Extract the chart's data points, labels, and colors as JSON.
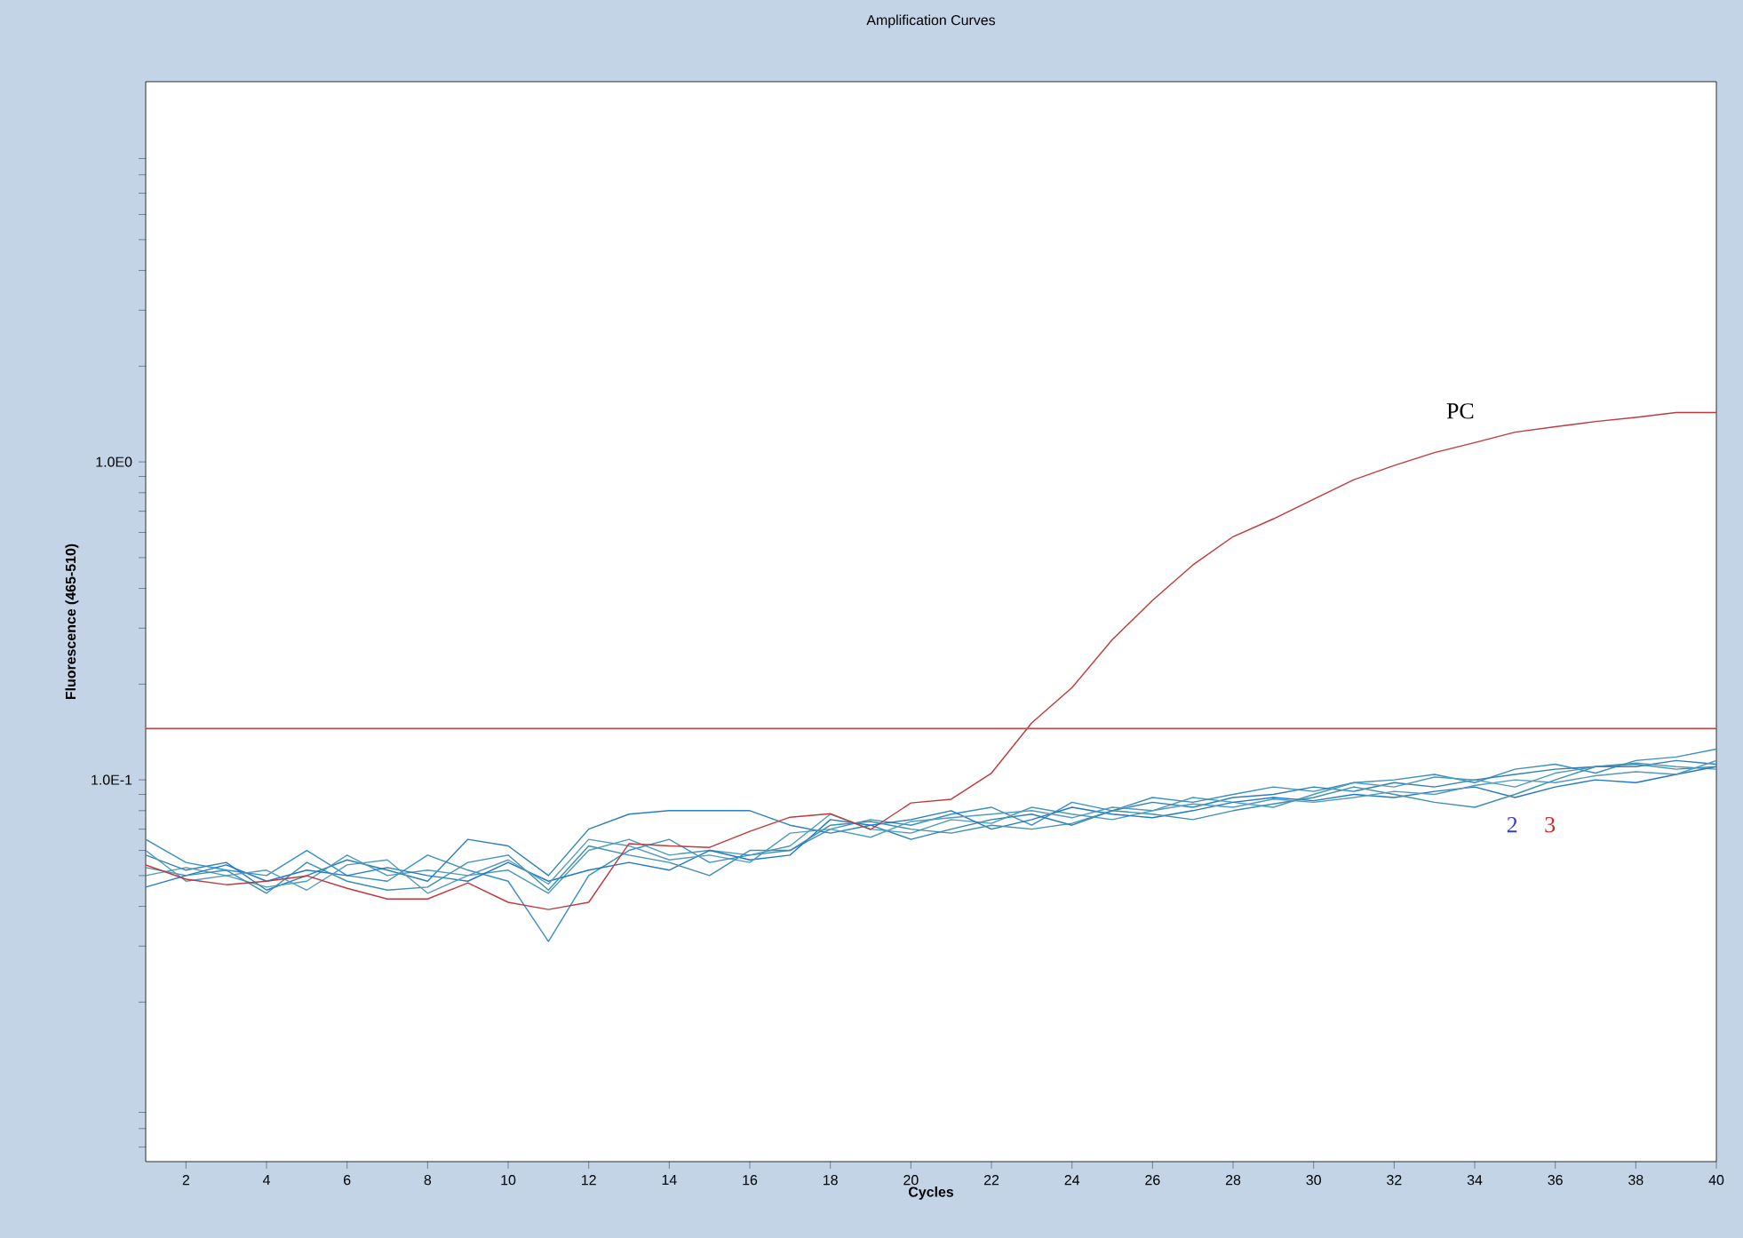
{
  "chart_data": {
    "type": "line",
    "title": "Amplification Curves",
    "xlabel": "Cycles",
    "ylabel": "Fluorescence (465-510)",
    "log": "y",
    "grid": false,
    "marker": "none",
    "line_style": "solid",
    "xlim": [
      1,
      40
    ],
    "ylim": [
      0.0063,
      15.7
    ],
    "xticks": [
      2,
      4,
      6,
      8,
      10,
      12,
      14,
      16,
      18,
      20,
      22,
      24,
      26,
      28,
      30,
      32,
      34,
      36,
      38,
      40
    ],
    "yticks": [
      {
        "value": 0.007,
        "label": null
      },
      {
        "value": 0.008,
        "label": null
      },
      {
        "value": 0.009,
        "label": null
      },
      {
        "value": 0.02,
        "label": null
      },
      {
        "value": 0.03,
        "label": null
      },
      {
        "value": 0.04,
        "label": null
      },
      {
        "value": 0.05,
        "label": null
      },
      {
        "value": 0.06,
        "label": null
      },
      {
        "value": 0.07,
        "label": null
      },
      {
        "value": 0.08,
        "label": null
      },
      {
        "value": 0.09,
        "label": null
      },
      {
        "value": 0.1,
        "label": "1.0E-1"
      },
      {
        "value": 0.2,
        "label": null
      },
      {
        "value": 0.3,
        "label": null
      },
      {
        "value": 0.4,
        "label": null
      },
      {
        "value": 0.5,
        "label": null
      },
      {
        "value": 0.6,
        "label": null
      },
      {
        "value": 0.7,
        "label": null
      },
      {
        "value": 0.8,
        "label": null
      },
      {
        "value": 0.9,
        "label": null
      },
      {
        "value": 1,
        "label": "1.0E0"
      },
      {
        "value": 2,
        "label": null
      },
      {
        "value": 3,
        "label": null
      },
      {
        "value": 4,
        "label": null
      },
      {
        "value": 5,
        "label": null
      },
      {
        "value": 6,
        "label": null
      },
      {
        "value": 7,
        "label": null
      },
      {
        "value": 8,
        "label": null
      },
      {
        "value": 9,
        "label": null
      }
    ],
    "x": [
      1,
      2,
      3,
      4,
      5,
      6,
      7,
      8,
      9,
      10,
      11,
      12,
      13,
      14,
      15,
      16,
      17,
      18,
      19,
      20,
      21,
      22,
      23,
      24,
      25,
      26,
      27,
      28,
      29,
      30,
      31,
      32,
      33,
      34,
      35,
      36,
      37,
      38,
      39,
      40
    ],
    "series": [
      {
        "color": "#3b8ec2",
        "values": [
          0.065,
          0.055,
          0.052,
          0.05,
          0.06,
          0.05,
          0.048,
          0.058,
          0.052,
          0.048,
          0.031,
          0.05,
          0.06,
          0.065,
          0.055,
          0.058,
          0.06,
          0.07,
          0.075,
          0.072,
          0.078,
          0.082,
          0.072,
          0.085,
          0.08,
          0.088,
          0.085,
          0.09,
          0.095,
          0.092,
          0.098,
          0.1,
          0.104,
          0.098,
          0.108,
          0.112,
          0.105,
          0.115,
          0.118,
          0.125
        ]
      },
      {
        "color": "#2c7fb8",
        "values": [
          0.058,
          0.052,
          0.055,
          0.045,
          0.05,
          0.056,
          0.052,
          0.048,
          0.065,
          0.062,
          0.05,
          0.07,
          0.078,
          0.08,
          0.08,
          0.08,
          0.072,
          0.068,
          0.072,
          0.065,
          0.07,
          0.075,
          0.078,
          0.072,
          0.08,
          0.085,
          0.082,
          0.088,
          0.09,
          0.095,
          0.092,
          0.098,
          0.095,
          0.1,
          0.104,
          0.108,
          0.11,
          0.11,
          0.115,
          0.112
        ]
      },
      {
        "color": "#4a9ab8",
        "values": [
          0.05,
          0.053,
          0.05,
          0.046,
          0.048,
          0.058,
          0.05,
          0.052,
          0.05,
          0.052,
          0.044,
          0.06,
          0.065,
          0.058,
          0.06,
          0.058,
          0.062,
          0.078,
          0.07,
          0.068,
          0.075,
          0.073,
          0.082,
          0.078,
          0.075,
          0.08,
          0.088,
          0.085,
          0.082,
          0.09,
          0.098,
          0.095,
          0.102,
          0.1,
          0.095,
          0.105,
          0.11,
          0.113,
          0.11,
          0.108
        ]
      },
      {
        "color": "#1f78c8",
        "values": [
          0.046,
          0.05,
          0.054,
          0.048,
          0.052,
          0.05,
          0.053,
          0.05,
          0.048,
          0.055,
          0.048,
          0.052,
          0.055,
          0.052,
          0.06,
          0.056,
          0.058,
          0.075,
          0.072,
          0.075,
          0.08,
          0.07,
          0.075,
          0.082,
          0.078,
          0.076,
          0.08,
          0.085,
          0.088,
          0.086,
          0.09,
          0.088,
          0.092,
          0.095,
          0.088,
          0.095,
          0.1,
          0.098,
          0.104,
          0.11
        ]
      },
      {
        "color": "#3d8fb0",
        "values": [
          0.053,
          0.05,
          0.052,
          0.044,
          0.055,
          0.048,
          0.045,
          0.046,
          0.055,
          0.058,
          0.045,
          0.062,
          0.058,
          0.055,
          0.05,
          0.06,
          0.06,
          0.072,
          0.074,
          0.07,
          0.068,
          0.072,
          0.07,
          0.073,
          0.08,
          0.078,
          0.075,
          0.08,
          0.084,
          0.088,
          0.095,
          0.09,
          0.085,
          0.082,
          0.09,
          0.1,
          0.11,
          0.112,
          0.108,
          0.11
        ]
      },
      {
        "color": "#5599c0",
        "values": [
          0.06,
          0.048,
          0.05,
          0.052,
          0.045,
          0.054,
          0.056,
          0.044,
          0.05,
          0.056,
          0.047,
          0.065,
          0.062,
          0.056,
          0.058,
          0.055,
          0.068,
          0.07,
          0.066,
          0.074,
          0.076,
          0.078,
          0.08,
          0.076,
          0.082,
          0.08,
          0.084,
          0.082,
          0.087,
          0.085,
          0.088,
          0.092,
          0.09,
          0.096,
          0.1,
          0.098,
          0.103,
          0.106,
          0.104,
          0.115
        ]
      },
      {
        "color": "#c0393b",
        "values": [
          0.054,
          0.0487,
          0.0468,
          0.048,
          0.0499,
          0.0456,
          0.0422,
          0.0422,
          0.0474,
          0.0412,
          0.0391,
          0.0412,
          0.063,
          0.062,
          0.0613,
          0.0689,
          0.0763,
          0.0783,
          0.0698,
          0.0846,
          0.0869,
          0.105,
          0.151,
          0.195,
          0.276,
          0.367,
          0.474,
          0.582,
          0.662,
          0.763,
          0.879,
          0.975,
          1.07,
          1.15,
          1.24,
          1.29,
          1.34,
          1.38,
          1.43,
          1.43
        ]
      }
    ],
    "ref_lines": [
      {
        "axis": "y",
        "value": 0.145,
        "color": "#b05050"
      }
    ],
    "annotations": [
      "PC",
      "2",
      "3"
    ]
  }
}
